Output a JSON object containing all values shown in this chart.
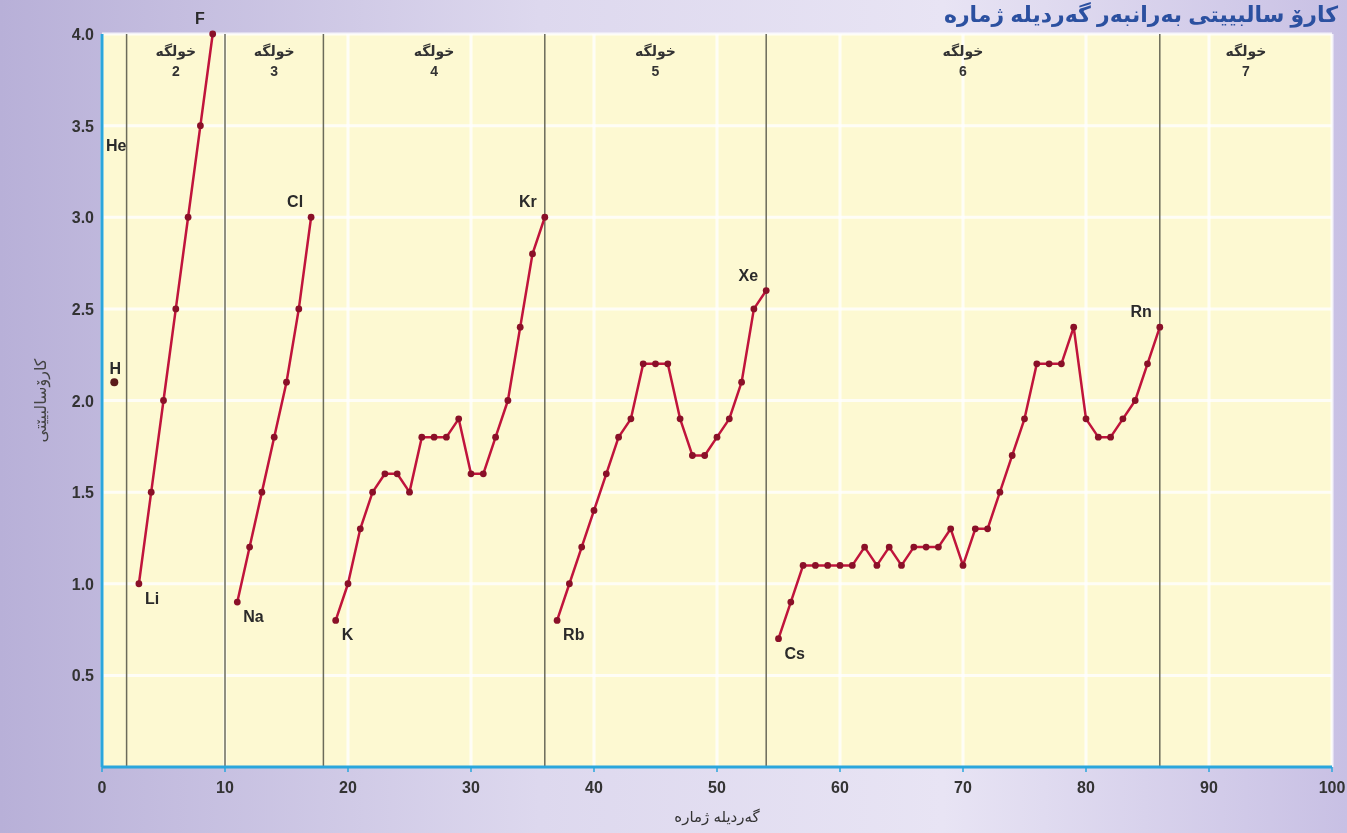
{
  "chart_data": {
    "type": "line",
    "title": "کارۆ سالبییتی بەرانبەر گەردیلە ژمارە",
    "xlabel": "گەردیلە ژمارە",
    "ylabel": "کارۆسالبیێتی",
    "xlim": [
      0,
      100
    ],
    "ylim": [
      0,
      4
    ],
    "xticks": [
      0,
      10,
      20,
      30,
      40,
      50,
      60,
      70,
      80,
      90,
      100
    ],
    "yticks": [
      {
        "value": 0.5,
        "label": "0.5"
      },
      {
        "value": 1,
        "label": "1.0"
      },
      {
        "value": 1.5,
        "label": "1.5"
      },
      {
        "value": 2,
        "label": "2.0"
      },
      {
        "value": 2.5,
        "label": "2.5"
      },
      {
        "value": 3,
        "label": "3.0"
      },
      {
        "value": 3.5,
        "label": "3.5"
      },
      {
        "value": 4,
        "label": "4.0"
      }
    ],
    "grid": true,
    "marker": "circle",
    "line_style": "solid",
    "series": [
      {
        "type": "scatter",
        "color": "#5a1a1a",
        "x": [
          1
        ],
        "values": [
          2.1
        ]
      },
      {
        "color": "#c0143c",
        "x": [
          3,
          4,
          5,
          6,
          7,
          8,
          9
        ],
        "values": [
          1.0,
          1.5,
          2.0,
          2.5,
          3.0,
          3.5,
          4.0
        ]
      },
      {
        "color": "#c0143c",
        "x": [
          11,
          12,
          13,
          14,
          15,
          16,
          17
        ],
        "values": [
          0.9,
          1.2,
          1.5,
          1.8,
          2.1,
          2.5,
          3.0
        ]
      },
      {
        "color": "#c0143c",
        "x": [
          19,
          20,
          21,
          22,
          23,
          24,
          25,
          26,
          27,
          28,
          29,
          30,
          31,
          32,
          33,
          34,
          35,
          36
        ],
        "values": [
          0.8,
          1.0,
          1.3,
          1.5,
          1.6,
          1.6,
          1.5,
          1.8,
          1.8,
          1.8,
          1.9,
          1.6,
          1.6,
          1.8,
          2.0,
          2.4,
          2.8,
          3.0
        ]
      },
      {
        "color": "#c0143c",
        "x": [
          37,
          38,
          39,
          40,
          41,
          42,
          43,
          44,
          45,
          46,
          47,
          48,
          49,
          50,
          51,
          52,
          53,
          54
        ],
        "values": [
          0.8,
          1.0,
          1.2,
          1.4,
          1.6,
          1.8,
          1.9,
          2.2,
          2.2,
          2.2,
          1.9,
          1.7,
          1.7,
          1.8,
          1.9,
          2.1,
          2.5,
          2.6
        ]
      },
      {
        "color": "#c0143c",
        "x": [
          55,
          56,
          57,
          58,
          59,
          60,
          61,
          62,
          63,
          64,
          65,
          66,
          67,
          68,
          69,
          70,
          71,
          72,
          73,
          74,
          75,
          76,
          77,
          78,
          79,
          80,
          81,
          82,
          83,
          84,
          85,
          86
        ],
        "values": [
          0.7,
          0.9,
          1.1,
          1.1,
          1.1,
          1.1,
          1.1,
          1.2,
          1.1,
          1.2,
          1.1,
          1.2,
          1.2,
          1.2,
          1.3,
          1.1,
          1.3,
          1.3,
          1.5,
          1.7,
          1.9,
          2.2,
          2.2,
          2.2,
          2.4,
          1.9,
          1.8,
          1.8,
          1.9,
          2.0,
          2.2,
          2.4
        ]
      }
    ],
    "ref_lines": [
      {
        "axis": "x",
        "value": 2,
        "color": "#6b6b5a"
      },
      {
        "axis": "x",
        "value": 10,
        "color": "#6b6b5a"
      },
      {
        "axis": "x",
        "value": 18,
        "color": "#6b6b5a"
      },
      {
        "axis": "x",
        "value": 36,
        "color": "#6b6b5a"
      },
      {
        "axis": "x",
        "value": 54,
        "color": "#6b6b5a"
      },
      {
        "axis": "x",
        "value": 86,
        "color": "#6b6b5a"
      }
    ],
    "annotations": [
      {
        "text": "H",
        "x": 1,
        "y": 2.1
      },
      "He",
      "خولگە 2",
      "خولگە 3",
      "خولگە 4",
      "خولگە 5",
      "خولگە 6",
      "خولگە 7",
      {
        "text": "Li",
        "x": 3,
        "y": 1.0
      },
      {
        "text": "F",
        "x": 9,
        "y": 4.0
      },
      {
        "text": "Na",
        "x": 11,
        "y": 0.9
      },
      {
        "text": "Cl",
        "x": 17,
        "y": 3.0
      },
      {
        "text": "K",
        "x": 19,
        "y": 0.8
      },
      {
        "text": "Kr",
        "x": 36,
        "y": 3.0
      },
      {
        "text": "Rb",
        "x": 37,
        "y": 0.8
      },
      {
        "text": "Xe",
        "x": 54,
        "y": 2.6
      },
      {
        "text": "Cs",
        "x": 55,
        "y": 0.7
      },
      {
        "text": "Rn",
        "x": 86,
        "y": 2.4
      }
    ]
  }
}
